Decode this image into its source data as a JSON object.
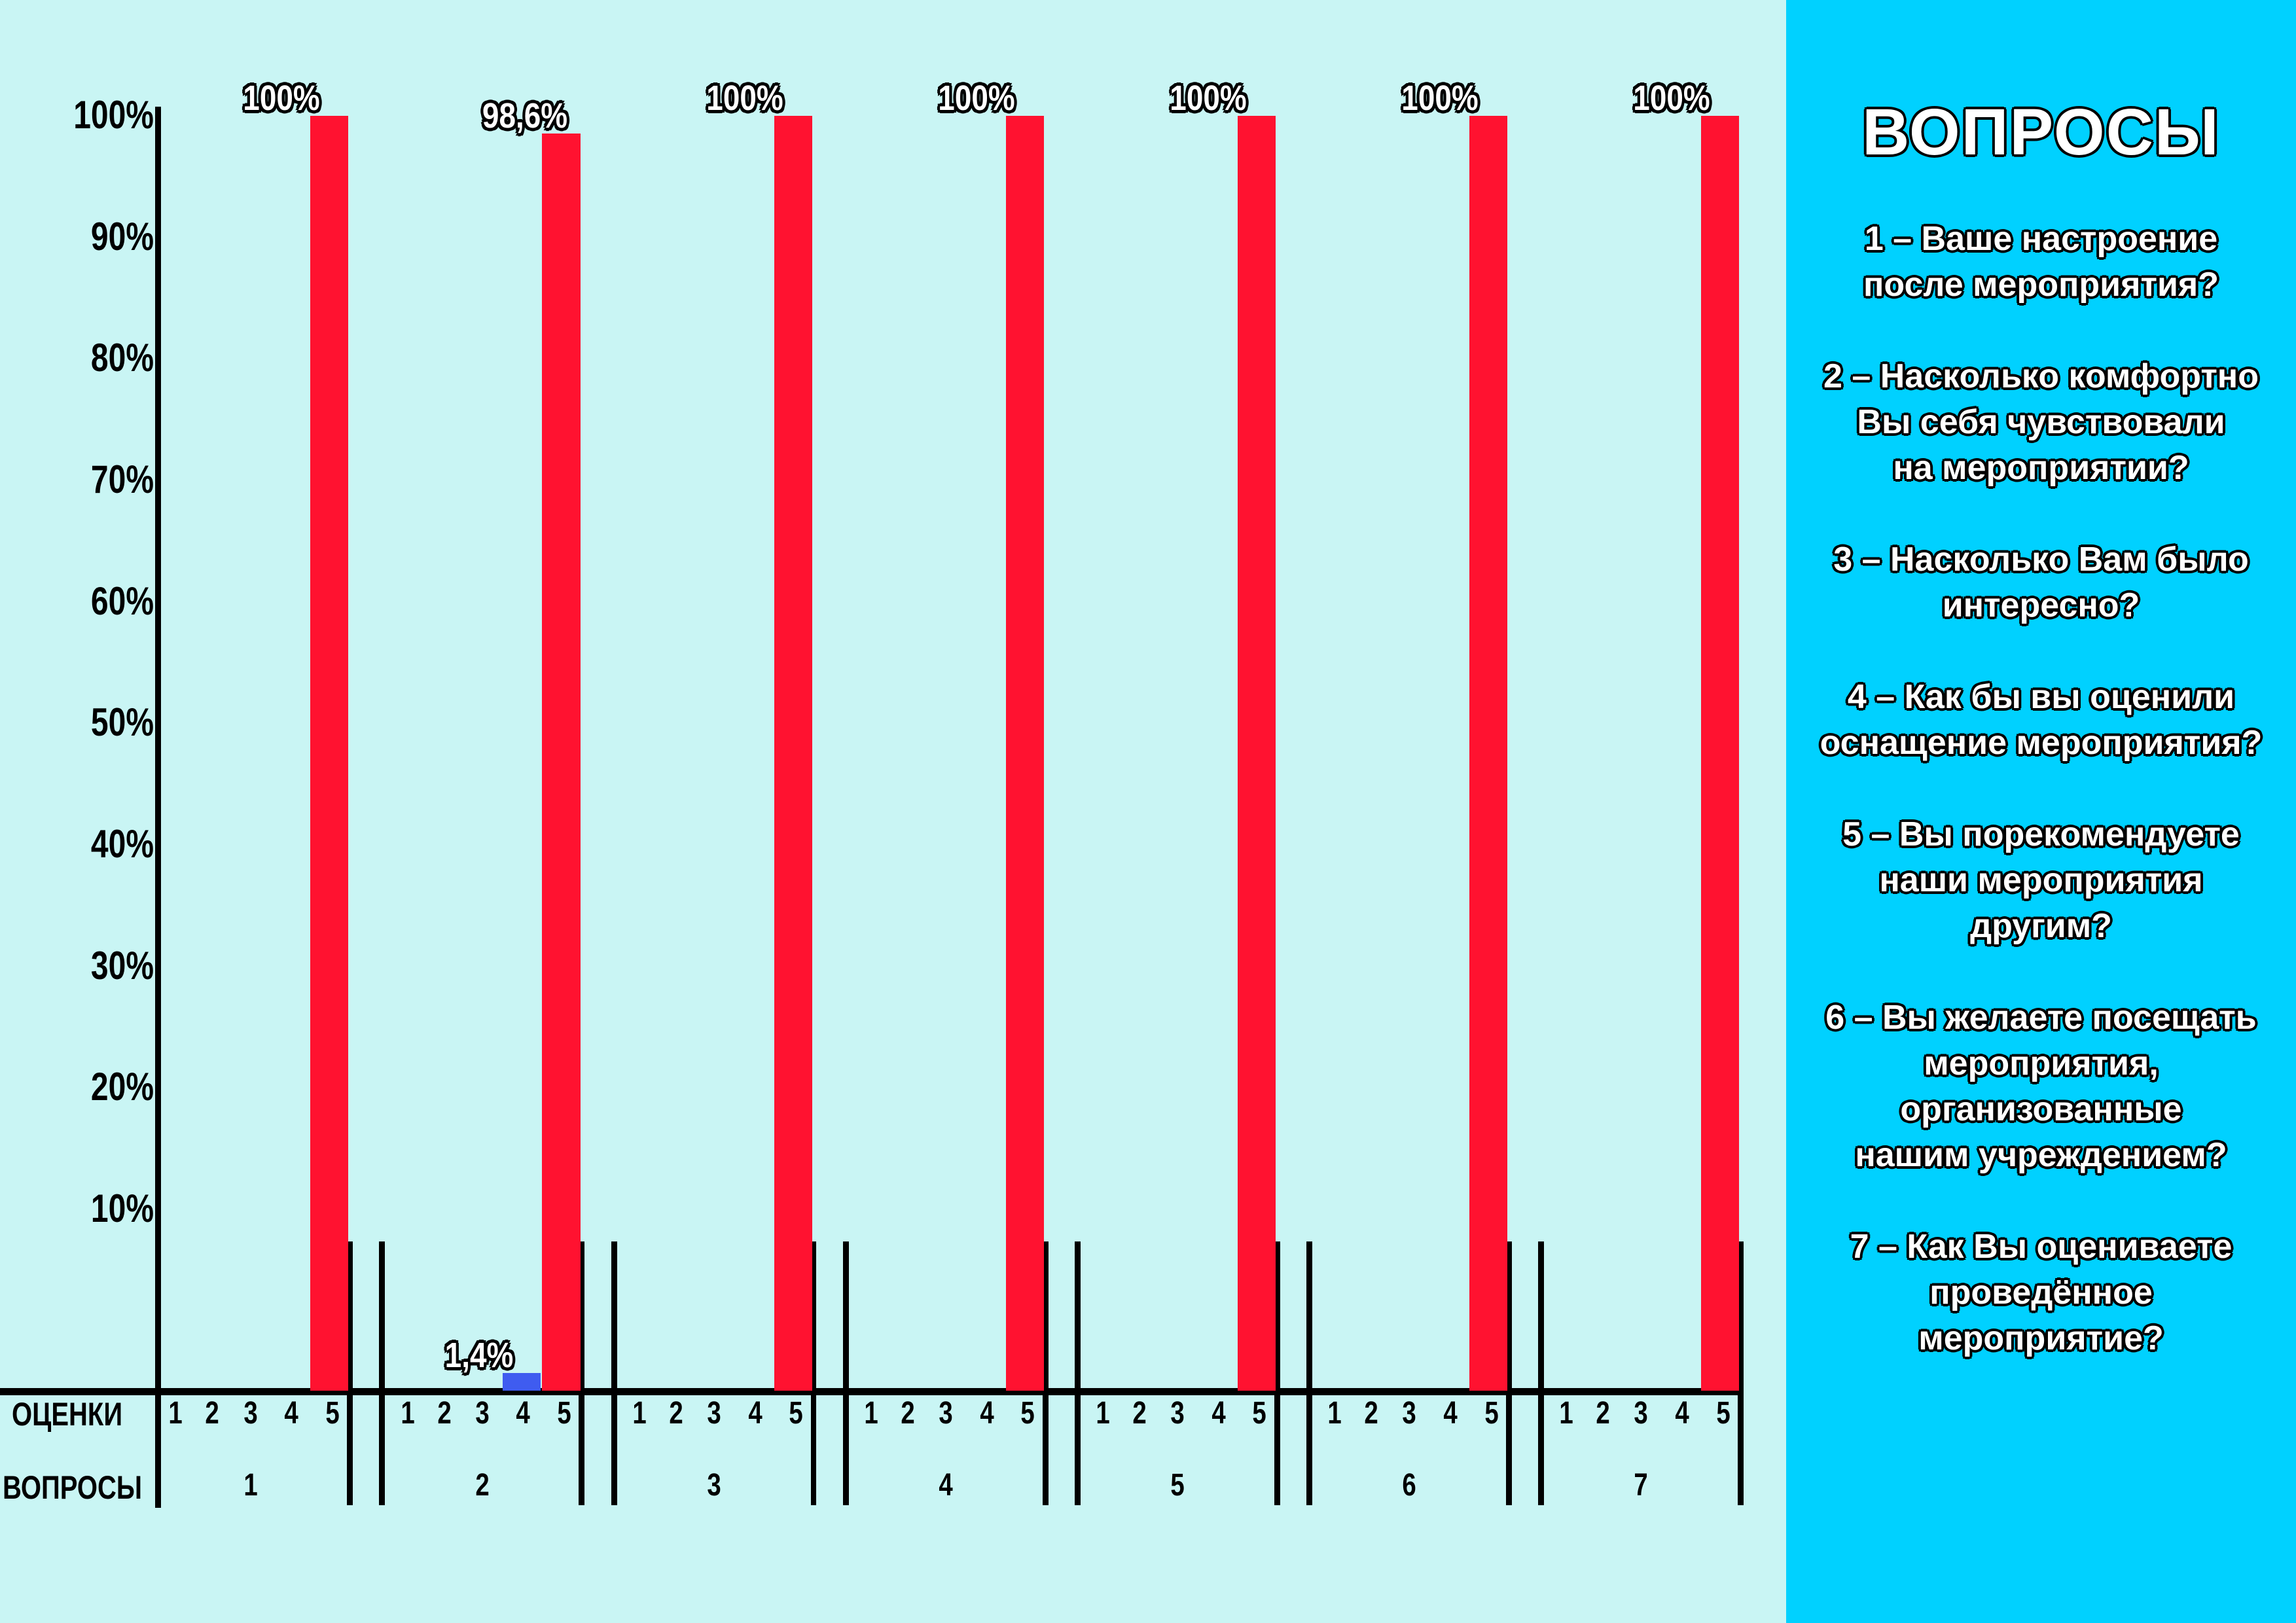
{
  "chart_data": {
    "type": "bar",
    "y_ticks": [
      "100%",
      "90%",
      "80%",
      "70%",
      "60%",
      "50%",
      "40%",
      "30%",
      "20%",
      "10%"
    ],
    "ylim": [
      0,
      100
    ],
    "x_row_labels": {
      "ratings": "ОЦЕНКИ",
      "questions": "ВОПРОСЫ"
    },
    "ratings": [
      "1",
      "2",
      "3",
      "4",
      "5"
    ],
    "groups": [
      {
        "question": "1",
        "values": [
          0,
          0,
          0,
          0,
          100
        ],
        "labels": {
          "5": "100%"
        }
      },
      {
        "question": "2",
        "values": [
          0,
          0,
          0,
          1.4,
          98.6
        ],
        "labels": {
          "4": "1,4%",
          "5": "98,6%"
        }
      },
      {
        "question": "3",
        "values": [
          0,
          0,
          0,
          0,
          100
        ],
        "labels": {
          "5": "100%"
        }
      },
      {
        "question": "4",
        "values": [
          0,
          0,
          0,
          0,
          100
        ],
        "labels": {
          "5": "100%"
        }
      },
      {
        "question": "5",
        "values": [
          0,
          0,
          0,
          0,
          100
        ],
        "labels": {
          "5": "100%"
        }
      },
      {
        "question": "6",
        "values": [
          0,
          0,
          0,
          0,
          100
        ],
        "labels": {
          "5": "100%"
        }
      },
      {
        "question": "7",
        "values": [
          0,
          0,
          0,
          0,
          100
        ],
        "labels": {
          "5": "100%"
        }
      }
    ],
    "colors": {
      "5": "#ff1230",
      "4": "#3f5cf0"
    }
  },
  "panel": {
    "title": "ВОПРОСЫ",
    "questions": [
      "1 – Ваше настроение\nпосле мероприятия?",
      "2 – Насколько комфортно\nВы себя чувствовали\nна мероприятии?",
      "3 – Насколько Вам было\nинтересно?",
      "4 – Как бы вы оценили\nоснащение мероприятия?",
      "5 – Вы порекомендуете\nнаши мероприятия\nдругим?",
      "6 – Вы желаете посещать\nмероприятия,\nорганизованные\nнашим учреждением?",
      "7 – Как Вы оцениваете\nпроведённое\nмероприятие?"
    ]
  }
}
